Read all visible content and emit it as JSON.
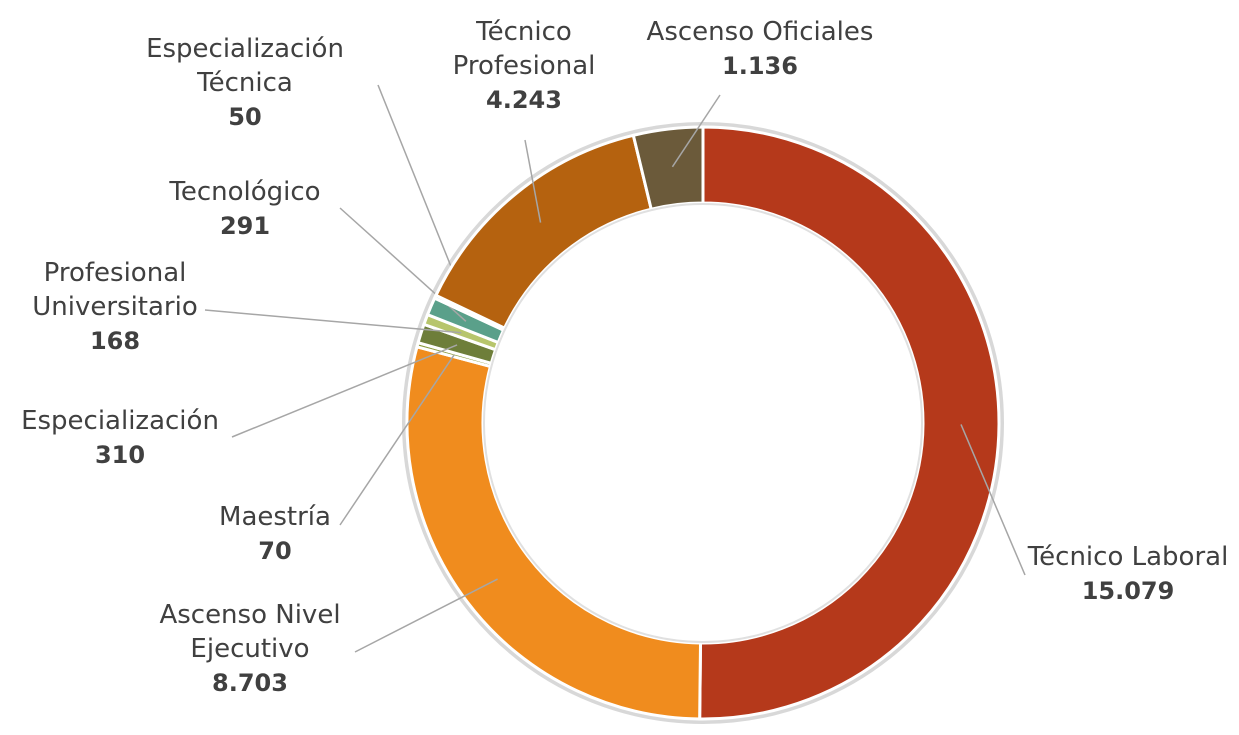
{
  "chart_data": {
    "type": "donut",
    "categories": [
      "Técnico Laboral",
      "Ascenso Nivel Ejecutivo",
      "Maestría",
      "Especialización",
      "Profesional Universitario",
      "Tecnológico",
      "Especialización Técnica",
      "Técnico Profesional",
      "Ascenso Oficiales"
    ],
    "values": [
      15079,
      8703,
      70,
      310,
      168,
      291,
      50,
      4243,
      1136
    ],
    "value_labels": [
      "15.079",
      "8.703",
      "70",
      "310",
      "168",
      "291",
      "50",
      "4.243",
      "1.136"
    ],
    "colors": [
      "#b5391b",
      "#f08c1e",
      "#8c9b3e",
      "#6e7e3a",
      "#b7c56c",
      "#5aa08a",
      "#3d8f8f",
      "#b5620f",
      "#6b5a3a"
    ]
  }
}
